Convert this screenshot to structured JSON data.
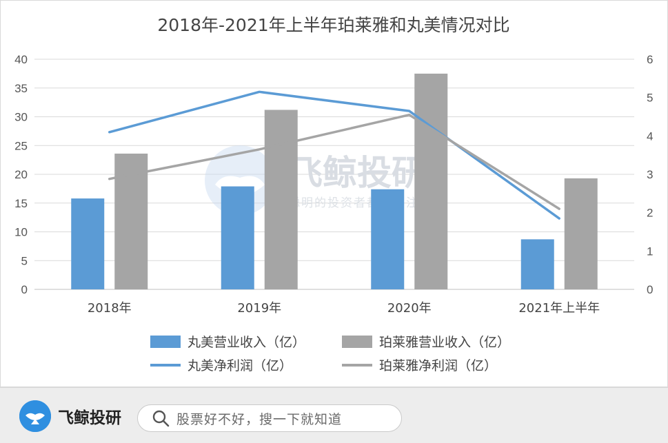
{
  "chart_data": {
    "type": "bar",
    "title": "2018年-2021年上半年珀莱雅和丸美情况对比",
    "categories": [
      "2018年",
      "2019年",
      "2020年",
      "2021年上半年"
    ],
    "y_left": {
      "ylim": [
        0,
        40
      ],
      "ticks": [
        "0",
        "5",
        "10",
        "15",
        "20",
        "25",
        "30",
        "35",
        "40"
      ]
    },
    "y_right": {
      "ylim": [
        0,
        6
      ],
      "ticks": [
        "0",
        "1",
        "2",
        "3",
        "4",
        "5",
        "6"
      ]
    },
    "grid": true,
    "legend_position": "bottom",
    "series": [
      {
        "name": "丸美营业收入（亿）",
        "type": "bar",
        "axis": "left",
        "color": "#5b9bd5",
        "values": [
          15.8,
          17.9,
          17.4,
          8.7
        ]
      },
      {
        "name": "珀莱雅营业收入（亿）",
        "type": "bar",
        "axis": "left",
        "color": "#a5a5a5",
        "values": [
          23.6,
          31.2,
          37.5,
          19.3
        ]
      },
      {
        "name": "丸美净利润（亿）",
        "type": "line",
        "axis": "right",
        "color": "#5b9bd5",
        "values": [
          4.1,
          5.15,
          4.65,
          1.85
        ]
      },
      {
        "name": "珀莱雅净利润（亿）",
        "type": "line",
        "axis": "right",
        "color": "#a5a5a5",
        "values": [
          2.88,
          3.65,
          4.55,
          2.1
        ]
      }
    ]
  },
  "watermark": {
    "title": "飞鲸投研",
    "subtitle": "聪明的投资者都在关注",
    "icon": "whale-logo-icon"
  },
  "footer": {
    "brand_name": "飞鲸投研",
    "brand_icon": "whale-logo-icon",
    "search_icon": "search-icon",
    "search_placeholder": "股票好不好，搜一下就知道"
  }
}
